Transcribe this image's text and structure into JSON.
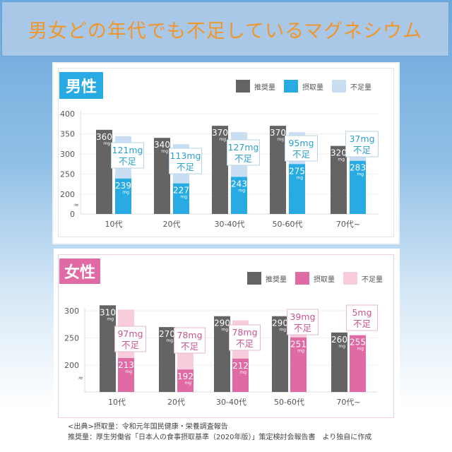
{
  "title": "男女どの年代でも不足しているマグネシウム",
  "colors": {
    "title_text": "#f0962a",
    "recommended": "#646464",
    "male_intake": "#27abe2",
    "male_shortage": "#c9def2",
    "male_callout": "#2a9fc9",
    "female_intake": "#e06aa3",
    "female_shortage": "#f7cddd",
    "female_callout": "#c8558f"
  },
  "legend": [
    "推奨量",
    "摂取量",
    "不足量"
  ],
  "unit": "mg",
  "shortage_suffix": "不足",
  "axis_break_symbol": "≈",
  "chart_data": [
    {
      "type": "bar",
      "title": "男性",
      "categories": [
        "10代",
        "20代",
        "30-40代",
        "50-60代",
        "70代~"
      ],
      "series": [
        {
          "name": "推奨量",
          "values": [
            360,
            340,
            370,
            370,
            320
          ]
        },
        {
          "name": "摂取量",
          "values": [
            239,
            227,
            243,
            275,
            283
          ]
        },
        {
          "name": "不足量",
          "values": [
            121,
            113,
            127,
            95,
            37
          ]
        }
      ],
      "callouts": [
        "121mg",
        "113mg",
        "127mg",
        "95mg",
        "37mg"
      ],
      "yticks": [
        0,
        200,
        250,
        300,
        350,
        400
      ],
      "ylim": [
        0,
        400
      ],
      "axis_break": [
        0,
        200
      ],
      "legend_position": "top-right",
      "grid": true
    },
    {
      "type": "bar",
      "title": "女性",
      "categories": [
        "10代",
        "20代",
        "30-40代",
        "50-60代",
        "70代~"
      ],
      "series": [
        {
          "name": "推奨量",
          "values": [
            310,
            270,
            290,
            290,
            260
          ]
        },
        {
          "name": "摂取量",
          "values": [
            213,
            192,
            212,
            251,
            255
          ]
        },
        {
          "name": "不足量",
          "values": [
            97,
            78,
            78,
            39,
            5
          ]
        }
      ],
      "callouts": [
        "97mg",
        "78mg",
        "78mg",
        "39mg",
        "5mg"
      ],
      "yticks": [
        200,
        250,
        300
      ],
      "ylim": [
        150,
        300
      ],
      "axis_break": [
        0,
        200
      ],
      "legend_position": "top-right",
      "grid": true
    }
  ],
  "footer": {
    "line1": "<出典>摂取量：令和元年国民健康・栄養調査報告",
    "line2": "推奨量：厚生労働省「日本人の食事摂取基準（2020年版）」策定検討会報告書　より独自に作成"
  }
}
